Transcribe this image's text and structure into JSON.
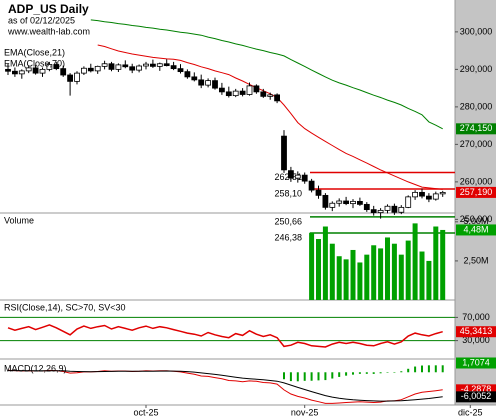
{
  "chart_data": [
    {
      "type": "candlestick",
      "title": "ADP_US Daily",
      "subtitle": "as of 02/12/2025",
      "source": "www.wealth-lab.com",
      "up_color": "#ffffff",
      "down_color": "#000000",
      "values": [
        [
          290,
          291.5,
          288.5,
          289.5
        ],
        [
          289.5,
          290.5,
          288,
          288.8
        ],
        [
          288.8,
          290,
          287.5,
          289.6
        ],
        [
          289.6,
          291,
          289,
          290.4
        ],
        [
          290.4,
          291.2,
          288.6,
          289
        ],
        [
          289,
          290.5,
          288,
          290
        ],
        [
          290,
          292,
          289.5,
          291.3
        ],
        [
          291.3,
          292,
          289.8,
          290.2
        ],
        [
          290.2,
          291,
          288,
          288.5
        ],
        [
          288.5,
          289,
          283,
          286.8
        ],
        [
          286.8,
          289.5,
          286,
          289
        ],
        [
          289,
          290.8,
          288.5,
          290.3
        ],
        [
          290.3,
          291.5,
          289.2,
          289.6
        ],
        [
          289.6,
          291,
          288.8,
          290.8
        ],
        [
          290.8,
          292.3,
          290,
          291.5
        ],
        [
          291.5,
          292,
          289.5,
          290
        ],
        [
          290,
          291.6,
          289.3,
          291.2
        ],
        [
          291.2,
          292.4,
          290.3,
          290.7
        ],
        [
          290.7,
          291.5,
          289,
          289.8
        ],
        [
          289.8,
          291.3,
          289.2,
          290.9
        ],
        [
          290.9,
          292,
          290,
          291.4
        ],
        [
          291.4,
          292.6,
          290.4,
          290.8
        ],
        [
          290.8,
          291.8,
          289.6,
          291.5
        ],
        [
          291.5,
          292.7,
          290.8,
          291
        ],
        [
          291,
          292,
          289.8,
          290.2
        ],
        [
          290.2,
          291.4,
          288.9,
          289.4
        ],
        [
          289.4,
          290,
          287.5,
          288
        ],
        [
          288,
          289.2,
          286.8,
          287.2
        ],
        [
          287.2,
          288.6,
          285,
          285.8
        ],
        [
          285.8,
          287.6,
          285.2,
          287
        ],
        [
          287,
          287.8,
          284.6,
          285
        ],
        [
          285,
          286.4,
          283.2,
          284
        ],
        [
          284,
          285.4,
          282.5,
          283
        ],
        [
          283,
          284.8,
          282.6,
          284.2
        ],
        [
          284.2,
          285,
          282.8,
          283.3
        ],
        [
          283.3,
          286.5,
          283,
          285.6
        ],
        [
          285.6,
          286,
          283.5,
          284
        ],
        [
          284,
          284.8,
          282.4,
          282.8
        ],
        [
          282.8,
          283.8,
          281.9,
          283.2
        ],
        [
          283.2,
          283.6,
          281,
          281.6
        ],
        [
          272.2,
          273.8,
          262.4,
          263.2
        ],
        [
          263,
          264,
          260,
          261
        ],
        [
          261,
          262.8,
          259.8,
          261.8
        ],
        [
          261.8,
          262.5,
          259.5,
          260.2
        ],
        [
          260.2,
          260.8,
          257.2,
          257.8
        ],
        [
          257.8,
          259,
          255.5,
          256.4
        ],
        [
          256.4,
          257,
          252.6,
          253.2
        ],
        [
          253.2,
          254.8,
          252.2,
          254.3
        ],
        [
          254.3,
          255.6,
          253.4,
          254.9
        ],
        [
          254.9,
          256,
          253.8,
          254.2
        ],
        [
          254.2,
          255.4,
          253,
          254.8
        ],
        [
          254.8,
          255.8,
          253.6,
          254
        ],
        [
          254,
          254.6,
          252,
          252.6
        ],
        [
          252.6,
          253.6,
          251,
          251.8
        ],
        [
          251.8,
          253,
          250.2,
          252.4
        ],
        [
          252.4,
          254,
          251.6,
          253.5
        ],
        [
          253.5,
          254.2,
          251.2,
          251.9
        ],
        [
          251.9,
          253.8,
          251.4,
          253.2
        ],
        [
          253.2,
          256.4,
          253,
          256
        ],
        [
          256,
          257.8,
          255.2,
          257.2
        ],
        [
          257.2,
          258.2,
          255.6,
          256.2
        ],
        [
          256.2,
          257,
          254.6,
          255.4
        ],
        [
          255.4,
          257.4,
          255,
          256.8
        ],
        [
          256.8,
          257.6,
          256,
          257.19
        ]
      ],
      "last_value_label": "257,190",
      "last_value_color": "#e00000",
      "overlays": [
        {
          "name": "EMA(Close,21)",
          "color": "#e00000",
          "values": [
            null,
            null,
            null,
            null,
            null,
            null,
            null,
            null,
            null,
            null,
            null,
            null,
            null,
            296.5,
            296.1,
            295.5,
            294.9,
            294.5,
            294.1,
            293.8,
            293.5,
            293.2,
            293,
            292.8,
            292.7,
            292.4,
            291.8,
            291.3,
            290.7,
            290.2,
            289.6,
            289.1,
            288.6,
            287.7,
            286.9,
            286,
            285.1,
            284.3,
            283.5,
            282.5,
            280.5,
            278.2,
            275.8,
            274.2,
            273,
            271.9,
            270.8,
            269.7,
            268.6,
            267.6,
            266.8,
            265.9,
            265,
            264.1,
            263.2,
            262.4,
            261.6,
            260.8,
            260,
            259.3,
            258.6,
            258.4,
            258.2,
            258
          ]
        },
        {
          "name": "EMA(Close,70)",
          "color": "#008000",
          "last_value_label": "274,150",
          "values": [
            null,
            null,
            null,
            null,
            null,
            null,
            null,
            null,
            null,
            null,
            null,
            null,
            303.2,
            303,
            302.7,
            302.5,
            302.2,
            302,
            301.7,
            301.5,
            301.2,
            301,
            300.7,
            300.5,
            300.2,
            299.9,
            299.7,
            299.4,
            299.1,
            298.6,
            298.2,
            297.7,
            297.3,
            296.8,
            296.4,
            295.9,
            295.4,
            295,
            294.5,
            294.1,
            293.6,
            292.6,
            291.7,
            290.8,
            289.8,
            288.9,
            288,
            287.1,
            286.4,
            285.8,
            285.1,
            284.5,
            283.8,
            283.1,
            282.5,
            281.8,
            281.2,
            280.5,
            279.6,
            278.8,
            277.9,
            276,
            275.1,
            274.15
          ]
        }
      ],
      "levels": [
        {
          "value": 262.51,
          "label": "262,51",
          "color": "#e00000"
        },
        {
          "value": 258.1,
          "label": "258,10",
          "color": "#e00000"
        },
        {
          "value": 250.66,
          "label": "250,66",
          "color": "#008000"
        },
        {
          "value": 246.38,
          "label": "246,38",
          "color": "#008000"
        }
      ],
      "ylim": [
        244.5,
        308.5
      ],
      "yticks": [
        {
          "value": 250,
          "label": "250,000"
        },
        {
          "value": 260,
          "label": "260,000"
        },
        {
          "value": 270,
          "label": "270,000"
        },
        {
          "value": 280,
          "label": "280,000"
        },
        {
          "value": 290,
          "label": "290,000"
        },
        {
          "value": 300,
          "label": "300,000"
        }
      ],
      "xticks": [
        {
          "value": 20,
          "label": "oct-25"
        },
        {
          "value": 43,
          "label": "nov-25"
        },
        {
          "value": 67,
          "label": "dic-25"
        }
      ]
    },
    {
      "type": "bar",
      "title": "Volume",
      "color": "#00a000",
      "values": [
        null,
        null,
        null,
        null,
        null,
        null,
        null,
        null,
        null,
        null,
        null,
        null,
        null,
        null,
        null,
        null,
        null,
        null,
        null,
        null,
        null,
        null,
        null,
        null,
        null,
        null,
        null,
        null,
        null,
        null,
        null,
        null,
        null,
        null,
        null,
        null,
        null,
        null,
        null,
        null,
        null,
        null,
        null,
        null,
        4.3,
        3.9,
        4.7,
        3.6,
        2.8,
        2.6,
        3.2,
        2.4,
        2.9,
        3.5,
        3.3,
        4.0,
        3.6,
        2.9,
        3.8,
        4.9,
        3.1,
        2.5,
        4.7,
        4.48
      ],
      "last_value_label": "4,48M",
      "ylim": [
        0,
        5.5
      ],
      "yticks": [
        {
          "value": 2.5,
          "label": "2,50M"
        },
        {
          "value": 5,
          "label": "5,00M"
        }
      ]
    },
    {
      "type": "line",
      "title": "RSI(Close,14), SC>70, SV<30",
      "color": "#e00000",
      "values": [
        52,
        48,
        51,
        54,
        49,
        53,
        57,
        52,
        46,
        40,
        50,
        55,
        51,
        54,
        56,
        50,
        54,
        51,
        48,
        52,
        55,
        51,
        54,
        52,
        49,
        46,
        43,
        41,
        38,
        44,
        40,
        37,
        35,
        42,
        39,
        47,
        41,
        37,
        40,
        35,
        20,
        22,
        27,
        25,
        21,
        20,
        19,
        24,
        27,
        25,
        27,
        25,
        22,
        21,
        25,
        28,
        24,
        28,
        38,
        43,
        40,
        38,
        42,
        45.3413
      ],
      "last_value_label": "45,3413",
      "level_color": "#008000",
      "ylim": [
        0,
        100
      ],
      "yticks": [
        {
          "value": 30,
          "label": "30,000"
        },
        {
          "value": 70,
          "label": "70,000"
        }
      ]
    },
    {
      "type": "line",
      "title": "MACD(12,26,9)",
      "series": [
        {
          "color": "#e00000",
          "last_value_label": "-4,2878",
          "values": [
            0.5,
            0.4,
            0.3,
            0.35,
            0.3,
            0.3,
            0.45,
            0.4,
            0.2,
            -0.2,
            -0.1,
            0.1,
            0.1,
            0.2,
            0.35,
            0.25,
            0.3,
            0.3,
            0.2,
            0.25,
            0.35,
            0.3,
            0.35,
            0.35,
            0.25,
            0.1,
            -0.2,
            -0.5,
            -0.9,
            -1.0,
            -1.3,
            -1.6,
            -2.0,
            -2.1,
            -2.3,
            -2.1,
            -2.2,
            -2.5,
            -2.6,
            -2.9,
            -4.3,
            -5.3,
            -5.9,
            -6.3,
            -6.8,
            -7.2,
            -7.6,
            -7.6,
            -7.5,
            -7.4,
            -7.3,
            -7.2,
            -7.3,
            -7.4,
            -7.3,
            -7.0,
            -7.0,
            -6.7,
            -6.0,
            -5.3,
            -4.9,
            -4.7,
            -4.5,
            -4.2878
          ]
        },
        {
          "color": "#000000",
          "last_value_label": "-6,0052",
          "values": [
            0.4,
            0.4,
            0.4,
            0.38,
            0.37,
            0.36,
            0.38,
            0.38,
            0.35,
            0.25,
            0.18,
            0.16,
            0.15,
            0.16,
            0.2,
            0.21,
            0.23,
            0.24,
            0.24,
            0.24,
            0.26,
            0.27,
            0.29,
            0.3,
            0.29,
            0.25,
            0.16,
            0.03,
            -0.16,
            -0.33,
            -0.52,
            -0.74,
            -0.99,
            -1.21,
            -1.43,
            -1.56,
            -1.69,
            -1.85,
            -2.0,
            -2.18,
            -2.6,
            -3.14,
            -3.69,
            -4.21,
            -4.73,
            -5.22,
            -5.69,
            -6.07,
            -6.36,
            -6.57,
            -6.72,
            -6.82,
            -6.92,
            -7.0,
            -7.05,
            -7.05,
            -7.0,
            -6.95,
            -6.85,
            -6.7,
            -6.55,
            -6.4,
            -6.2,
            -6.0052
          ]
        }
      ],
      "histogram": {
        "color": "#00a000",
        "last_value_label": "1,7074",
        "values": [
          null,
          null,
          null,
          null,
          null,
          null,
          null,
          null,
          null,
          null,
          null,
          null,
          null,
          null,
          null,
          null,
          null,
          null,
          null,
          null,
          null,
          null,
          null,
          null,
          null,
          null,
          null,
          null,
          null,
          null,
          null,
          null,
          null,
          null,
          null,
          null,
          null,
          null,
          null,
          null,
          -1.7,
          -2.16,
          -2.21,
          -2.09,
          -2.07,
          -1.98,
          -1.91,
          -1.53,
          -1.14,
          -0.83,
          -0.58,
          -0.38,
          -0.38,
          -0.4,
          -0.25,
          0.05,
          0,
          0.25,
          0.85,
          1.4,
          1.65,
          1.7,
          1.7,
          1.7074
        ]
      },
      "ylim": [
        -8,
        3
      ]
    }
  ]
}
